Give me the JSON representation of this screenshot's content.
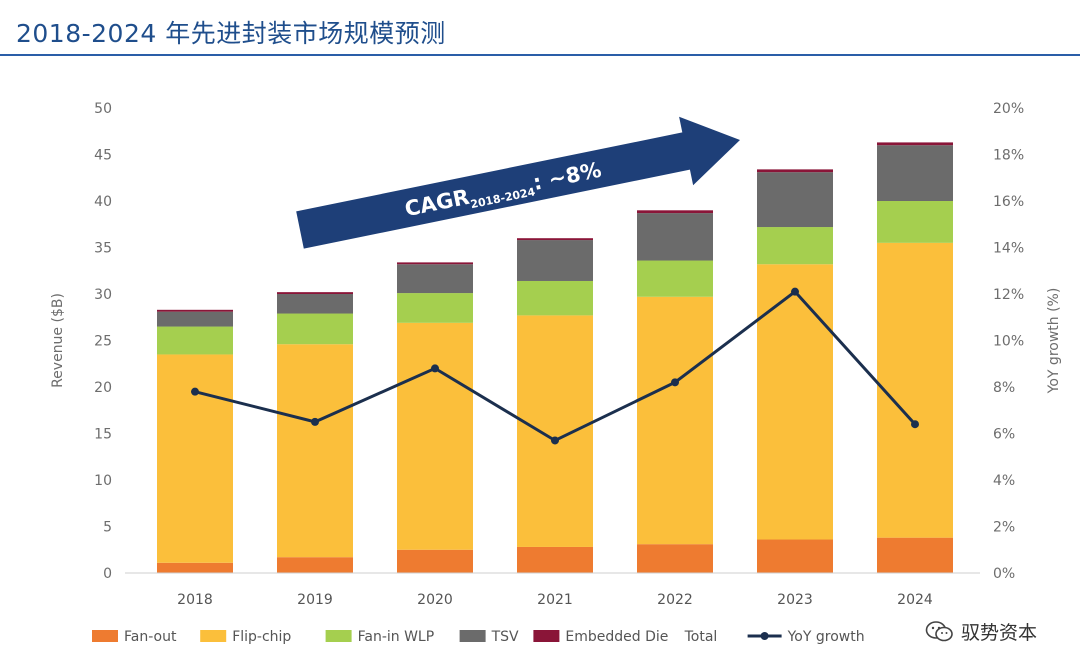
{
  "header": {
    "title": "2018-2024 年先进封装市场规模预测"
  },
  "watermark": {
    "text": "驭势资本",
    "icon": "wechat-icon"
  },
  "colors": {
    "fan_out": "#ee7b30",
    "flip_chip": "#fbbf3b",
    "fan_in_wlp": "#a5cf4f",
    "tsv": "#6b6b6b",
    "embedded_die": "#8a1538",
    "yoy_line": "#1b2f4e",
    "arrow": "#1e3f78",
    "title": "#1f4e8c"
  },
  "chart_data": {
    "type": "bar",
    "stacked": true,
    "categories": [
      "2018",
      "2019",
      "2020",
      "2021",
      "2022",
      "2023",
      "2024"
    ],
    "series": [
      {
        "name": "Fan-out",
        "values": [
          1.1,
          1.7,
          2.5,
          2.8,
          3.1,
          3.6,
          3.8
        ]
      },
      {
        "name": "Flip-chip",
        "values": [
          22.4,
          22.9,
          24.4,
          24.9,
          26.6,
          29.6,
          31.7
        ]
      },
      {
        "name": "Fan-in WLP",
        "values": [
          3.0,
          3.3,
          3.2,
          3.7,
          3.9,
          4.0,
          4.5
        ]
      },
      {
        "name": "TSV",
        "values": [
          1.6,
          2.1,
          3.1,
          4.4,
          5.1,
          5.9,
          6.0
        ]
      },
      {
        "name": "Embedded Die",
        "values": [
          0.2,
          0.2,
          0.2,
          0.2,
          0.3,
          0.3,
          0.3
        ]
      }
    ],
    "line_series": {
      "name": "YoY growth",
      "axis": "right",
      "values": [
        7.8,
        6.5,
        8.8,
        5.7,
        8.2,
        12.1,
        6.4
      ]
    },
    "ylabel": "Revenue ($B)",
    "ylim": [
      0,
      50
    ],
    "yticks": [
      0,
      5,
      10,
      15,
      20,
      25,
      30,
      35,
      40,
      45,
      50
    ],
    "y2label": "YoY growth (%)",
    "y2lim": [
      0,
      20
    ],
    "y2ticks": [
      "0%",
      "2%",
      "4%",
      "6%",
      "8%",
      "10%",
      "12%",
      "14%",
      "16%",
      "18%",
      "20%"
    ],
    "annotation": {
      "main": "CAGR",
      "sub": "2018-2024",
      "suffix": ": ~8%"
    },
    "legend": {
      "placement": "bottom",
      "items": [
        {
          "label": "Fan-out",
          "kind": "box",
          "color": "#ee7b30"
        },
        {
          "label": "Flip-chip",
          "kind": "box",
          "color": "#fbbf3b"
        },
        {
          "label": "Fan-in WLP",
          "kind": "box",
          "color": "#a5cf4f"
        },
        {
          "label": "TSV",
          "kind": "box",
          "color": "#6b6b6b"
        },
        {
          "label": "Embedded Die",
          "kind": "box",
          "color": "#8a1538"
        },
        {
          "label": "Total",
          "kind": "none",
          "color": ""
        },
        {
          "label": "YoY growth",
          "kind": "line",
          "color": "#1b2f4e"
        }
      ]
    },
    "grid": false
  }
}
